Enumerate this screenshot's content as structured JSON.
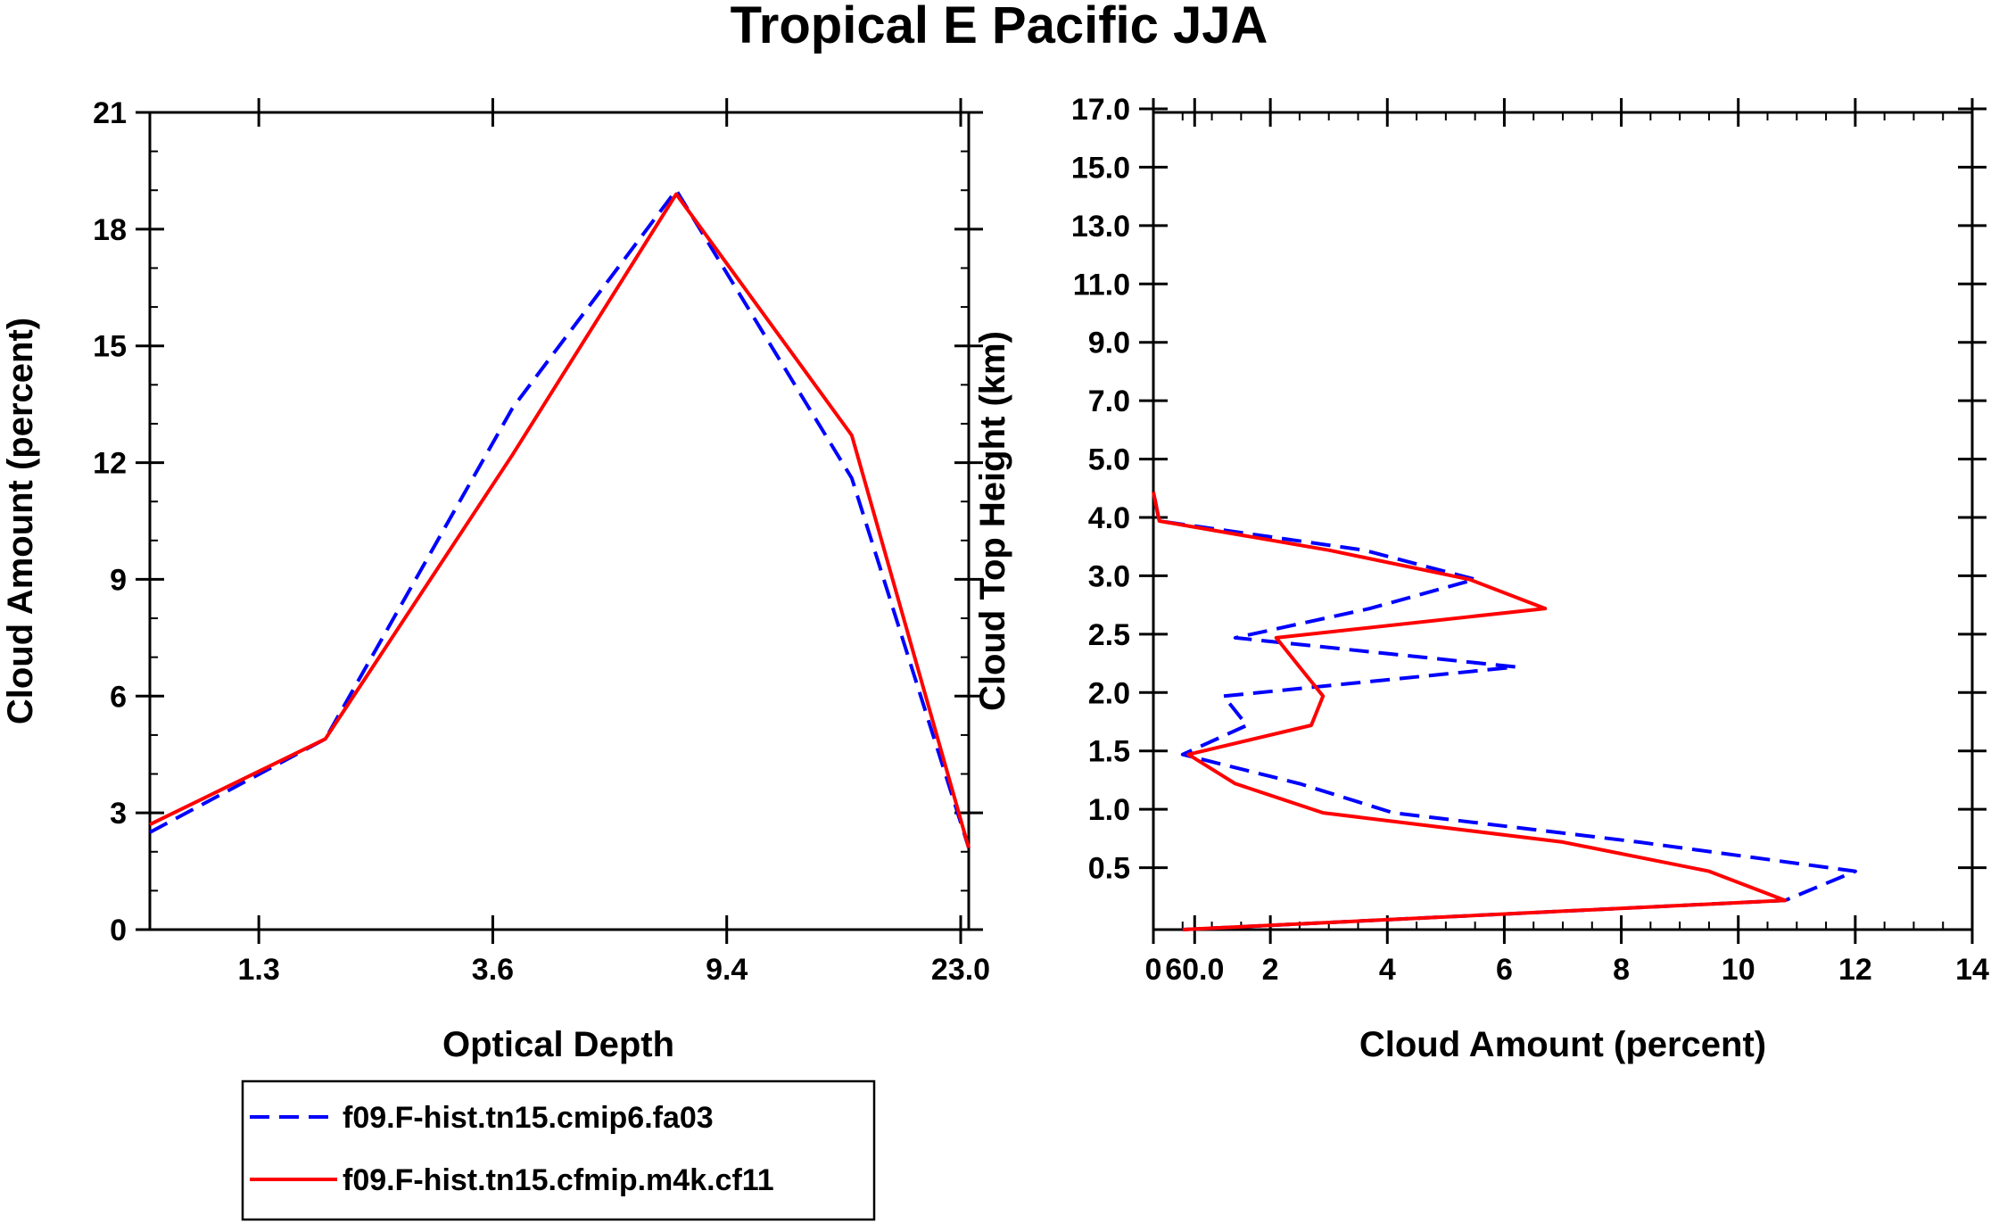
{
  "title": "Tropical E Pacific JJA",
  "series_styles": [
    {
      "color": "#0000ff",
      "dash": "dashed"
    },
    {
      "color": "#ff0000",
      "dash": "solid"
    }
  ],
  "legend": {
    "placement": "below-left",
    "entries": [
      "f09.F-hist.tn15.cmip6.fa03",
      "f09.F-hist.tn15.cfmip.m4k.cf11"
    ]
  },
  "chart_data": [
    {
      "type": "line",
      "xlabel": "Optical Depth",
      "ylabel": "Cloud Amount (percent)",
      "x_tick_labels": [
        "1.3",
        "3.6",
        "9.4",
        "23.0",
        "60.0"
      ],
      "y_ticks": [
        0,
        3,
        6,
        9,
        12,
        15,
        18,
        21
      ],
      "ylim": [
        0,
        21
      ],
      "x_index_range": [
        0,
        7
      ],
      "x_index": [
        0,
        1.5,
        3.1,
        4.5,
        6.0,
        7.0
      ],
      "series": [
        {
          "values": [
            2.5,
            4.9,
            13.4,
            19.0,
            11.6,
            2.1
          ]
        },
        {
          "values": [
            2.7,
            4.9,
            12.2,
            18.9,
            12.7,
            2.1
          ]
        }
      ],
      "grid": false
    },
    {
      "type": "line",
      "xlabel": "Cloud Amount (percent)",
      "ylabel": "Cloud Top Height (km)",
      "x_ticks": [
        0,
        2,
        4,
        6,
        8,
        10,
        12,
        14
      ],
      "xlim": [
        0,
        14
      ],
      "y_tick_labels": [
        "0.5",
        "1.0",
        "1.5",
        "2.0",
        "2.5",
        "3.0",
        "4.0",
        "5.0",
        "7.0",
        "9.0",
        "11.0",
        "13.0",
        "15.0",
        "17.0"
      ],
      "y_index_range": [
        0,
        14
      ],
      "y_index": [
        0,
        0.5,
        1.0,
        1.5,
        2.0,
        2.5,
        3.0,
        3.5,
        4.0,
        4.5,
        5.0,
        5.5,
        6.0,
        6.5,
        7.0,
        7.5
      ],
      "series": [
        {
          "values": [
            0.5,
            10.8,
            12.0,
            8.3,
            4.1,
            2.5,
            0.5,
            1.6,
            1.2,
            6.2,
            1.4,
            3.7,
            5.5,
            3.6,
            0.1,
            0.0
          ]
        },
        {
          "values": [
            0.5,
            10.8,
            9.5,
            7.0,
            2.9,
            1.4,
            0.6,
            2.7,
            2.9,
            2.5,
            2.1,
            6.7,
            5.4,
            3.0,
            0.1,
            0.0
          ]
        }
      ],
      "grid": false
    }
  ]
}
